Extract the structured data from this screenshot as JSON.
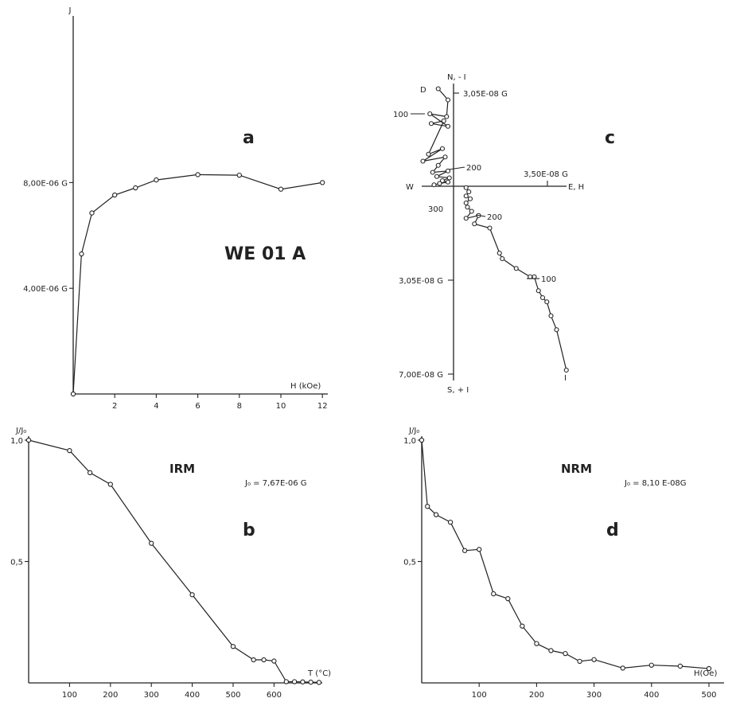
{
  "sample_label": "WE 01 A",
  "colors": {
    "ink": "#222222",
    "marker_fill": "#ffffff",
    "title_gray": "#555555"
  },
  "chart_data": [
    {
      "id": "a",
      "type": "line",
      "panel_letter": "a",
      "ylabel": "J",
      "xlabel": "H (kOe)",
      "xlim": [
        0,
        13
      ],
      "ylim": [
        0,
        9e-06
      ],
      "x_ticks": [
        2,
        4,
        6,
        8,
        10,
        12
      ],
      "x_tick_labels": [
        "2",
        "4",
        "6",
        "8",
        "10",
        "12"
      ],
      "y_ticks": [
        4e-06,
        8e-06
      ],
      "y_tick_labels": [
        "4,00E-06 G",
        "8,00E-06 G"
      ],
      "x": [
        0,
        0.4,
        0.9,
        2,
        3,
        4,
        6,
        8,
        10,
        12
      ],
      "y": [
        0,
        5.3e-06,
        6.85e-06,
        7.53e-06,
        7.8e-06,
        8.1e-06,
        8.3e-06,
        8.28e-06,
        7.75e-06,
        8e-06
      ],
      "grid": false
    },
    {
      "id": "b",
      "type": "line",
      "panel_letter": "b",
      "title": "IRM",
      "annotation": "J₀ = 7,67E-06 G",
      "ylabel": "J/J₀",
      "xlabel": "T (°C)",
      "xlim": [
        0,
        720
      ],
      "ylim": [
        0,
        1.0
      ],
      "x_ticks": [
        100,
        200,
        300,
        400,
        500,
        600
      ],
      "x_tick_labels": [
        "100",
        "200",
        "300",
        "400",
        "500",
        "600"
      ],
      "y_ticks": [
        0.5,
        1.0
      ],
      "y_tick_labels": [
        "0,5",
        "1,0"
      ],
      "x": [
        0,
        100,
        150,
        200,
        300,
        400,
        500,
        550,
        575,
        600,
        630,
        650,
        670,
        690,
        710
      ],
      "y": [
        1.0,
        0.957,
        0.866,
        0.818,
        0.575,
        0.363,
        0.15,
        0.095,
        0.095,
        0.09,
        0.005,
        0.005,
        0.004,
        0.003,
        0.002
      ],
      "grid": false
    },
    {
      "id": "c",
      "type": "scatter",
      "panel_letter": "c",
      "plot_kind": "orthogonal vector diagram",
      "axis_labels": {
        "north": "N, - I",
        "south": "S, + I",
        "west": "W",
        "east": "E, H"
      },
      "scale_labels": {
        "north_top": "3,05E-08 G",
        "east": "3,50E-08 G",
        "south_mid": "3,05E-08 G",
        "south_bottom": "7,00E-08 G"
      },
      "horizontal_projection": {
        "label": "D",
        "x": [
          -0.55,
          -0.2,
          -0.25,
          -0.85,
          -0.2,
          -0.8,
          -0.35,
          -0.9,
          -0.4,
          -1.1,
          -0.3,
          -0.55,
          -0.75,
          -0.2,
          -0.6,
          -0.15,
          -0.4,
          -0.2,
          -0.5,
          -0.7
        ],
        "y": [
          3.5,
          3.1,
          2.5,
          2.6,
          2.15,
          2.25,
          2.35,
          1.15,
          1.35,
          0.9,
          1.05,
          0.75,
          0.5,
          0.55,
          0.35,
          0.3,
          0.2,
          0.15,
          0.1,
          0.05
        ],
        "step_labels": [
          "100",
          "200",
          "300"
        ]
      },
      "vertical_projection": {
        "label": "I",
        "x": [
          0.45,
          0.55,
          0.45,
          0.6,
          0.45,
          0.5,
          0.65,
          0.45,
          0.9,
          0.75,
          1.3,
          1.65,
          1.75,
          2.25,
          2.75,
          2.9,
          3.05,
          3.2,
          3.35,
          3.5,
          3.7,
          4.05
        ],
        "y": [
          -0.05,
          -0.2,
          -0.35,
          -0.45,
          -0.6,
          -0.75,
          -0.9,
          -1.15,
          -1.05,
          -1.35,
          -1.5,
          -2.4,
          -2.6,
          -2.95,
          -3.25,
          -3.25,
          -3.75,
          -4.0,
          -4.15,
          -4.65,
          -5.15,
          -6.6
        ],
        "step_labels": [
          "100",
          "200"
        ]
      },
      "grid": false
    },
    {
      "id": "d",
      "type": "line",
      "panel_letter": "d",
      "title": "NRM",
      "annotation": "J₀ = 8,10 E-08G",
      "ylabel": "J/J₀",
      "xlabel": "H(Oe)",
      "xlim": [
        0,
        520
      ],
      "ylim": [
        0,
        1.0
      ],
      "x_ticks": [
        100,
        200,
        300,
        400,
        500
      ],
      "x_tick_labels": [
        "100",
        "200",
        "300",
        "400",
        "500"
      ],
      "y_ticks": [
        0.5,
        1.0
      ],
      "y_tick_labels": [
        "0,5",
        "1,0"
      ],
      "x": [
        0,
        10,
        25,
        50,
        75,
        100,
        125,
        150,
        175,
        200,
        225,
        250,
        275,
        300,
        350,
        400,
        450,
        500
      ],
      "y": [
        1.0,
        0.727,
        0.693,
        0.662,
        0.545,
        0.55,
        0.367,
        0.347,
        0.234,
        0.162,
        0.133,
        0.121,
        0.089,
        0.096,
        0.061,
        0.073,
        0.069,
        0.059
      ],
      "grid": false
    }
  ]
}
